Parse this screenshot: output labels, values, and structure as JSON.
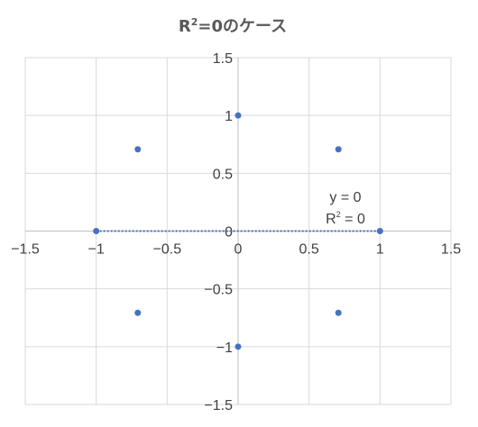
{
  "chart_data": {
    "type": "scatter",
    "title_main": "R",
    "title_sup": "2",
    "title_rest": "=0のケース",
    "xlim": [
      -1.5,
      1.5
    ],
    "ylim": [
      -1.5,
      1.5
    ],
    "x_ticks": [
      -1.5,
      -1,
      -0.5,
      0,
      0.5,
      1,
      1.5
    ],
    "y_ticks": [
      -1.5,
      -1,
      -0.5,
      0,
      0.5,
      1,
      1.5
    ],
    "x_tick_labels": [
      "−1.5",
      "−1",
      "−0.5",
      "0",
      "0.5",
      "1",
      "1.5"
    ],
    "y_tick_labels": [
      "−1.5",
      "−1",
      "−0.5",
      "0",
      "0.5",
      "1",
      "1.5"
    ],
    "grid": true,
    "points": [
      {
        "x": 1,
        "y": 0
      },
      {
        "x": 0.707,
        "y": 0.707
      },
      {
        "x": 0,
        "y": 1
      },
      {
        "x": -0.707,
        "y": 0.707
      },
      {
        "x": -1,
        "y": 0
      },
      {
        "x": -0.707,
        "y": -0.707
      },
      {
        "x": 0,
        "y": -1
      },
      {
        "x": 0.707,
        "y": -0.707
      }
    ],
    "trendline": {
      "x": [
        -1,
        1
      ],
      "y": [
        0,
        0
      ]
    },
    "annotation_eq": "y = 0",
    "annotation_r2_main": "R",
    "annotation_r2_sup": "2",
    "annotation_r2_rest": " = 0",
    "colors": {
      "point": "#4472C4",
      "trendline": "#4472C4",
      "grid": "#d9d9d9",
      "axis": "#bfbfbf",
      "text": "#404040",
      "title": "#595959"
    }
  }
}
